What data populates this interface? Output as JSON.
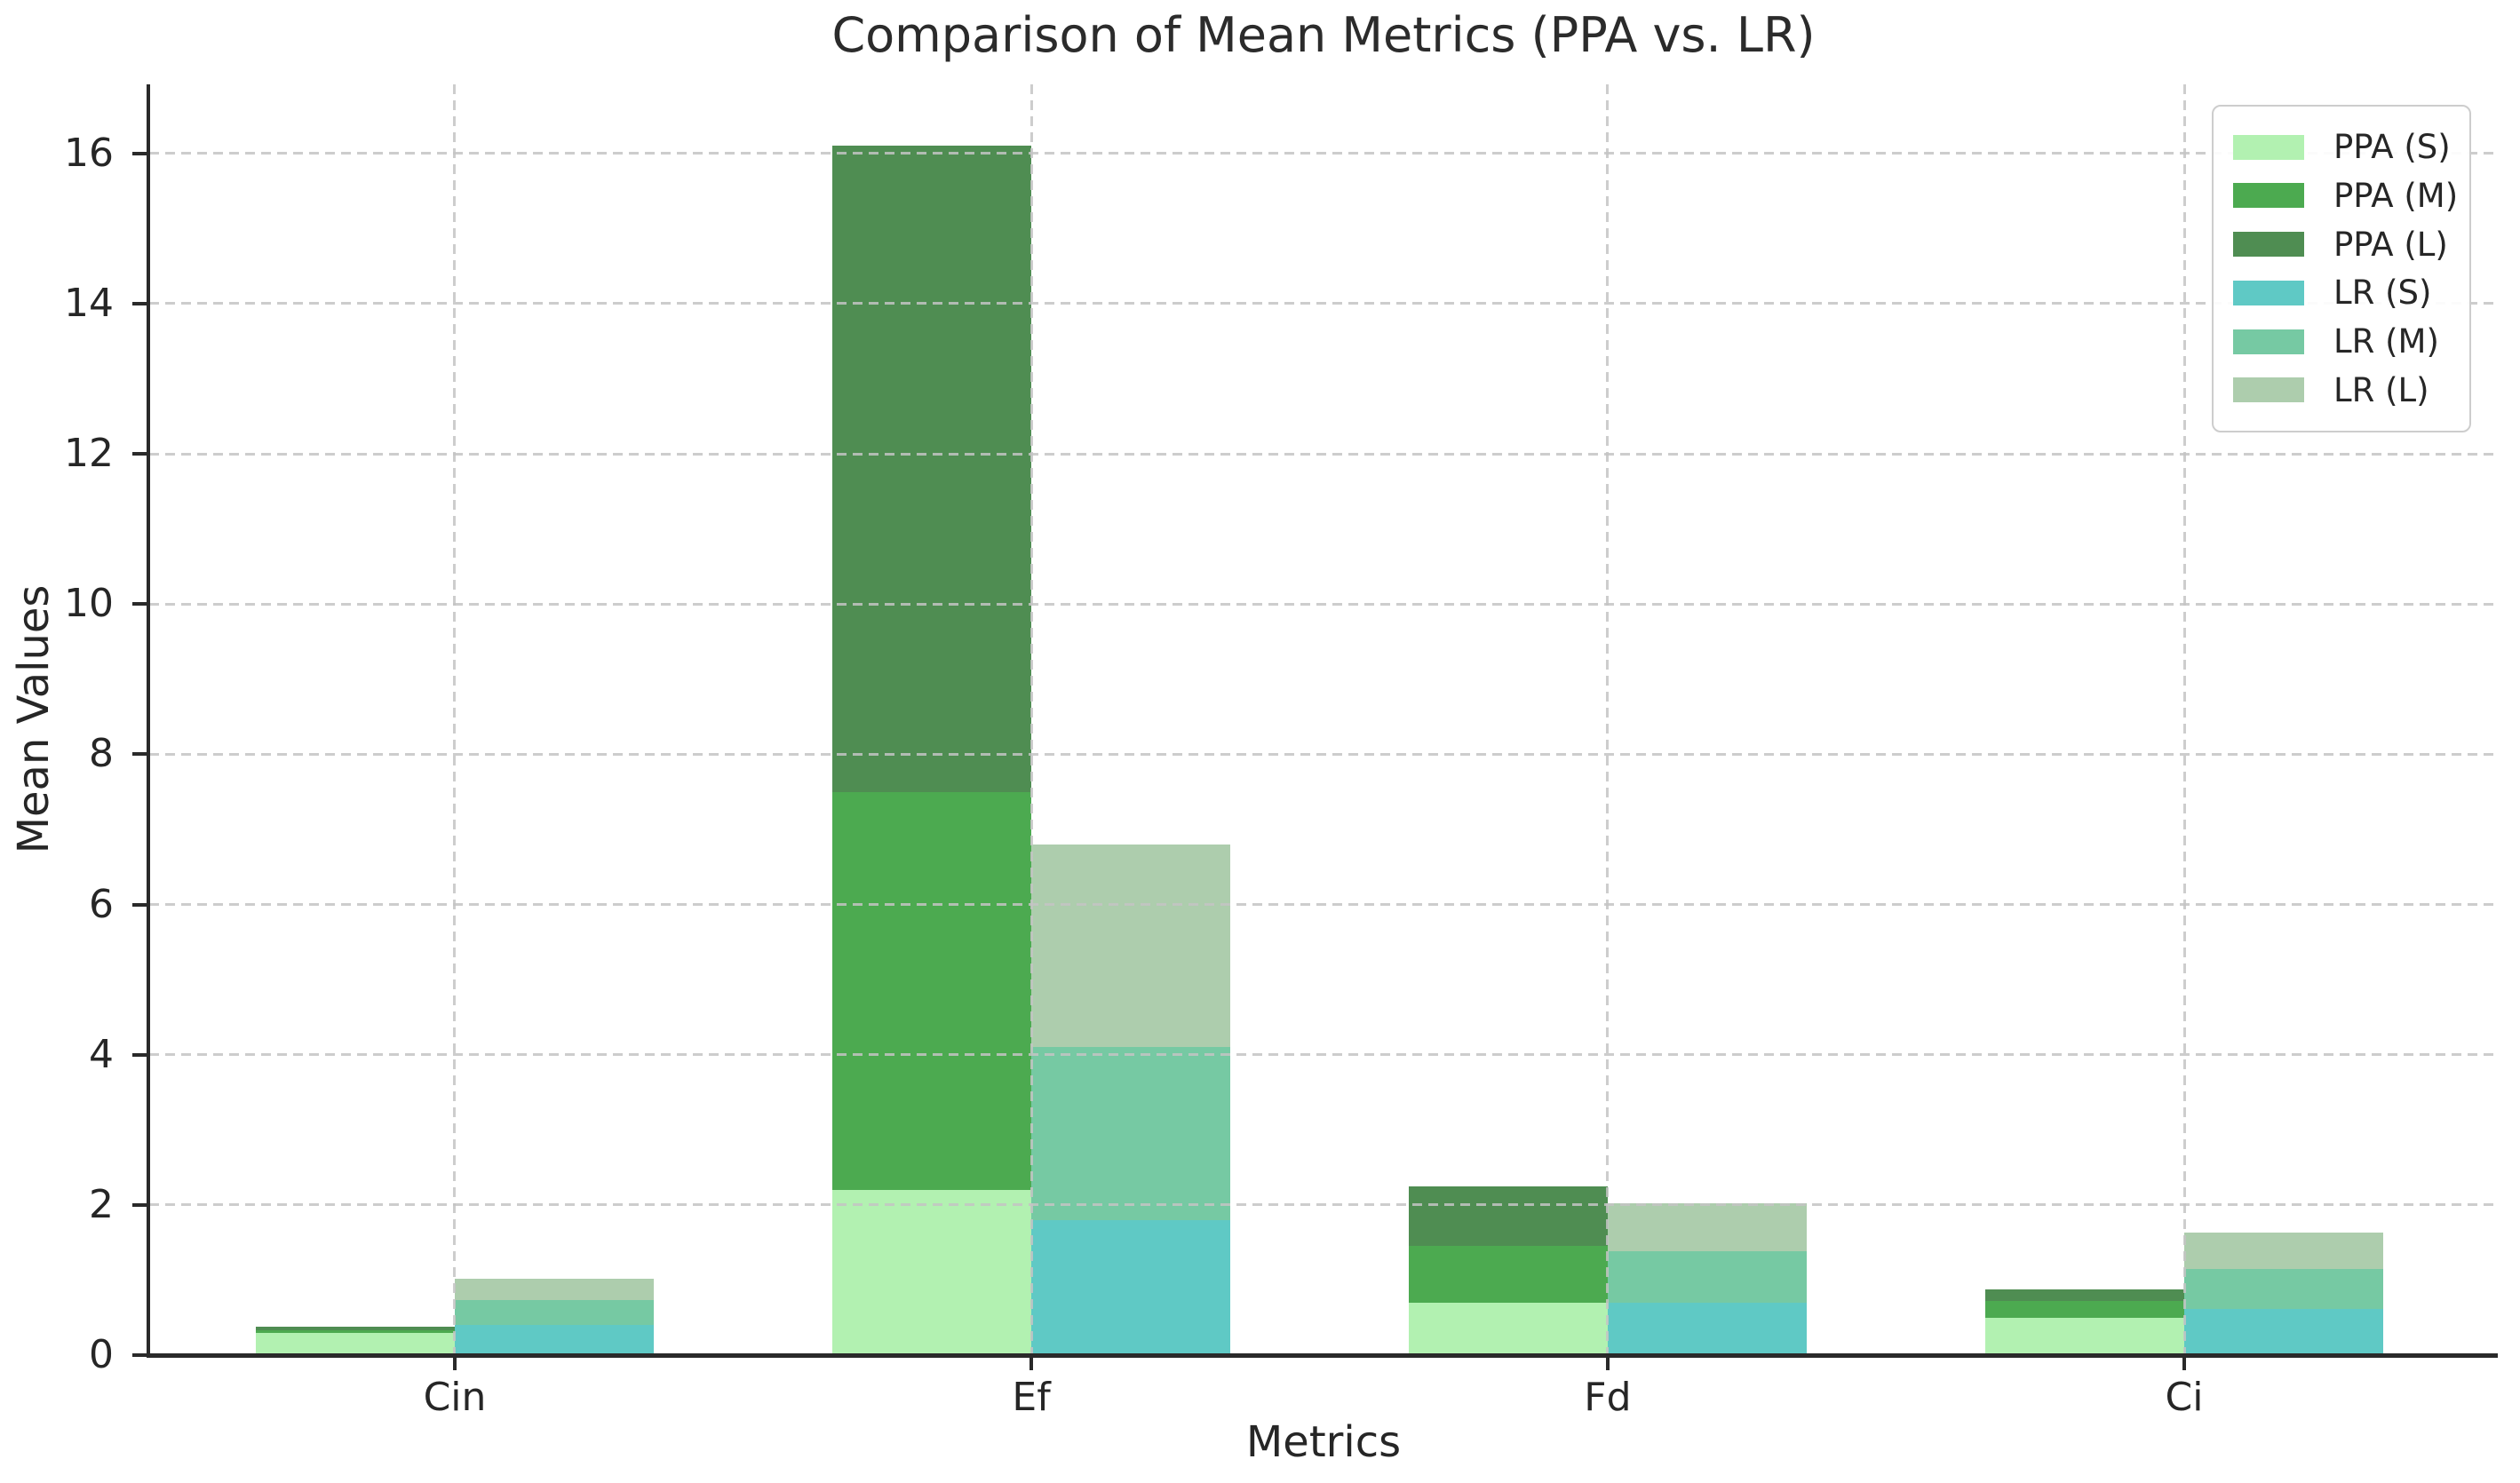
{
  "chart_data": {
    "type": "bar",
    "variant": "grouped-overlaid",
    "title": "Comparison of Mean Metrics (PPA vs. LR)",
    "xlabel": "Metrics",
    "ylabel": "Mean Values",
    "categories": [
      "Cin",
      "Ef",
      "Fd",
      "Ci"
    ],
    "yticks": [
      0,
      2,
      4,
      6,
      8,
      10,
      12,
      14,
      16
    ],
    "ylim": [
      0,
      16.92
    ],
    "grid": true,
    "grid_style": "dashed",
    "legend_position": "upper-right",
    "groups": [
      "PPA",
      "LR"
    ],
    "series": [
      {
        "name": "PPA (S)",
        "group": "PPA",
        "color": "#b2f1b1",
        "values": [
          0.29,
          2.2,
          0.7,
          0.5
        ]
      },
      {
        "name": "PPA (M)",
        "group": "PPA",
        "color": "#4caa50",
        "values": [
          0.33,
          7.5,
          1.45,
          0.72
        ]
      },
      {
        "name": "PPA (L)",
        "group": "PPA",
        "color": "#4f8d52",
        "values": [
          0.38,
          16.1,
          2.25,
          0.88
        ]
      },
      {
        "name": "LR (S)",
        "group": "LR",
        "color": "#5fc9c5",
        "values": [
          0.4,
          1.8,
          0.7,
          0.62
        ]
      },
      {
        "name": "LR (M)",
        "group": "LR",
        "color": "#76c9a3",
        "values": [
          0.73,
          4.1,
          1.38,
          1.15
        ]
      },
      {
        "name": "LR (L)",
        "group": "LR",
        "color": "#adcdad",
        "values": [
          1.02,
          6.8,
          2.02,
          1.63
        ]
      }
    ],
    "axis_color": "#2a2a2a",
    "text_color": "#262626",
    "gridline_color": "#c4c4c4",
    "background_color": "#ffffff"
  }
}
